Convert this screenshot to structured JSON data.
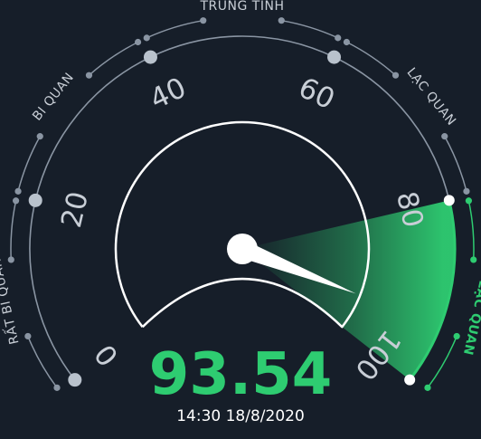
{
  "gauge": {
    "value": 93.54,
    "value_text": "93.54",
    "min": 0,
    "max": 100,
    "ticks": [
      {
        "value": 0,
        "label": "0",
        "active": false
      },
      {
        "value": 20,
        "label": "20",
        "active": false
      },
      {
        "value": 40,
        "label": "40",
        "active": false
      },
      {
        "value": 60,
        "label": "60",
        "active": false
      },
      {
        "value": 80,
        "label": "80",
        "active": true
      },
      {
        "value": 100,
        "label": "100",
        "active": true
      }
    ],
    "zones": [
      {
        "label": "RẤT BI QUAN",
        "from": 0,
        "to": 20,
        "active": false
      },
      {
        "label": "BI QUAN",
        "from": 20,
        "to": 40,
        "active": false
      },
      {
        "label": "TRUNG TÍNH",
        "from": 40,
        "to": 60,
        "active": false
      },
      {
        "label": "LẠC QUAN",
        "from": 60,
        "to": 80,
        "active": false
      },
      {
        "label": "RẤT LẠC QUAN",
        "from": 80,
        "to": 100,
        "active": true
      }
    ],
    "active_zone": {
      "from": 80,
      "to": 100
    },
    "timestamp": "14:30 18/8/2020",
    "colors": {
      "background": "#161e29",
      "accent": "#2ecc71",
      "text": "#c8ced6",
      "line": "#8a95a3"
    }
  }
}
